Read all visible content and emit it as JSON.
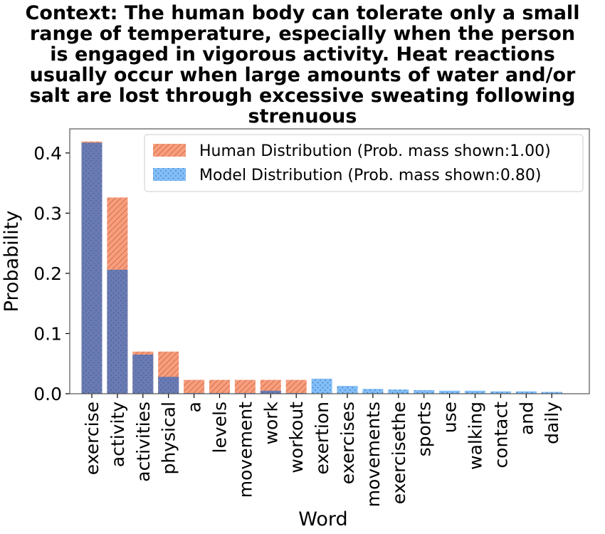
{
  "chart_data": {
    "type": "bar",
    "title_lines": [
      "Context: The human body can tolerate only a small",
      "range of temperature, especially when the person",
      "is engaged in vigorous activity. Heat reactions",
      "usually occur when large amounts of water and/or",
      "salt are lost through excessive sweating following",
      "strenuous"
    ],
    "xlabel": "Word",
    "ylabel": "Probability",
    "ylim": [
      0,
      0.44
    ],
    "yticks": [
      "0.0",
      "0.1",
      "0.2",
      "0.3",
      "0.4"
    ],
    "ytick_values": [
      0,
      0.1,
      0.2,
      0.3,
      0.4
    ],
    "categories": [
      "exercise",
      "activity",
      "activities",
      "physical",
      "a",
      "levels",
      "movement",
      "work",
      "workout",
      "exertion",
      "exercises",
      "movements",
      "exercisethe",
      "sports",
      "use",
      "walking",
      "contact",
      "and",
      "daily"
    ],
    "series": [
      {
        "name": "Human Distribution (Prob. mass shown:1.00)",
        "color": "#f4865e",
        "hatch": "diagonal",
        "values": [
          0.419,
          0.326,
          0.07,
          0.07,
          0.023,
          0.023,
          0.023,
          0.023,
          0.023,
          0,
          0,
          0,
          0,
          0,
          0,
          0,
          0,
          0,
          0
        ]
      },
      {
        "name": "Model Distribution (Prob. mass shown:0.80)",
        "color": "#4da3f7",
        "hatch": "dots",
        "values": [
          0.417,
          0.206,
          0.065,
          0.028,
          0.001,
          0.001,
          0.001,
          0.005,
          0.001,
          0.025,
          0.013,
          0.008,
          0.007,
          0.006,
          0.005,
          0.005,
          0.004,
          0.004,
          0.003
        ]
      }
    ],
    "legend_position": "top-right",
    "overlap_color": "#6b7ab3"
  }
}
